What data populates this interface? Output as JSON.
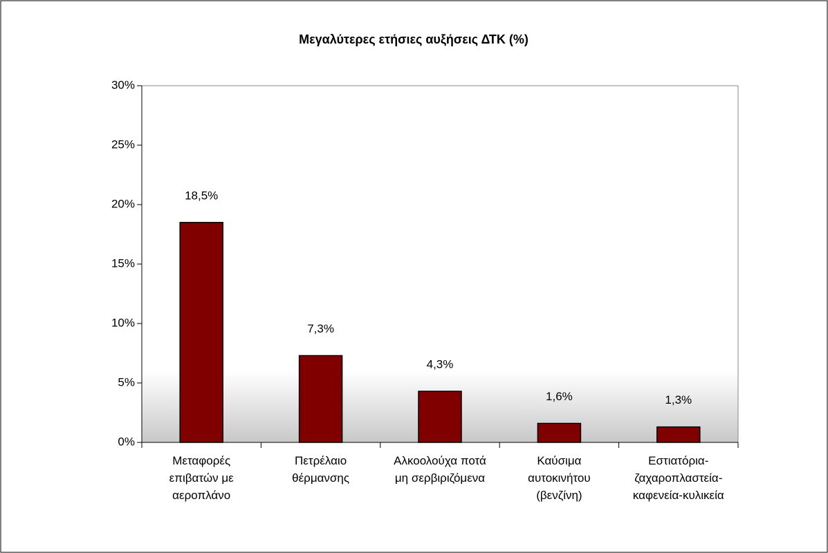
{
  "chart_data": {
    "type": "bar",
    "title": "Μεγαλύτερες ετήσιες αυξήσεις ΔΤΚ (%)",
    "categories": [
      "Μεταφορές επιβατών με αεροπλάνο",
      "Πετρέλαιο θέρμανσης",
      "Αλκοολούχα ποτά μη σερβιριζόμενα",
      "Καύσιμα αυτοκινήτου (βενζίνη)",
      "Εστιατόρια-ζαχαροπλαστεία-καφενεία-κυλικεία"
    ],
    "values": [
      18.5,
      7.3,
      4.3,
      1.6,
      1.3
    ],
    "value_labels": [
      "18,5%",
      "7,3%",
      "4,3%",
      "1,6%",
      "1,3%"
    ],
    "color": "#800000",
    "ylim": [
      0,
      30
    ],
    "yticks": [
      {
        "value": 0,
        "label": "0%"
      },
      {
        "value": 5,
        "label": "5%"
      },
      {
        "value": 10,
        "label": "10%"
      },
      {
        "value": 15,
        "label": "15%"
      },
      {
        "value": 20,
        "label": "20%"
      },
      {
        "value": 25,
        "label": "25%"
      },
      {
        "value": 30,
        "label": "30%"
      }
    ]
  }
}
